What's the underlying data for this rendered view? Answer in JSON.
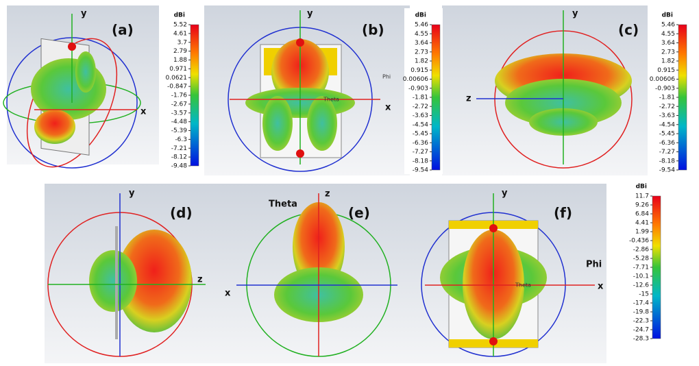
{
  "panels": [
    {
      "label": "(a)",
      "axes": [
        "y",
        "x"
      ]
    },
    {
      "label": "(b)",
      "axes": [
        "y",
        "x",
        "Phi",
        "Theta"
      ]
    },
    {
      "label": "(c)",
      "axes": [
        "y",
        "z"
      ]
    },
    {
      "label": "(d)",
      "axes": [
        "y",
        "z"
      ]
    },
    {
      "label": "(e)",
      "axes": [
        "z",
        "x",
        "Theta"
      ]
    },
    {
      "label": "(f)",
      "axes": [
        "y",
        "x",
        "Phi",
        "Theta"
      ]
    }
  ],
  "colorbars": [
    {
      "unit": "dBi",
      "ticks": [
        "5.52",
        "4.61",
        "3.7",
        "2.79",
        "1.88",
        "0.971",
        "0.0621",
        "-0.847",
        "-1.76",
        "-2.67",
        "-3.57",
        "-4.48",
        "-5.39",
        "-6.3",
        "-7.21",
        "-8.12",
        "-9.48"
      ]
    },
    {
      "unit": "dBi",
      "ticks": [
        "5.46",
        "4.55",
        "3.64",
        "2.73",
        "1.82",
        "0.915",
        "0.00606",
        "-0.903",
        "-1.81",
        "-2.72",
        "-3.63",
        "-4.54",
        "-5.45",
        "-6.36",
        "-7.27",
        "-8.18",
        "-9.54"
      ]
    },
    {
      "unit": "dBi",
      "ticks": [
        "5.46",
        "4.55",
        "3.64",
        "2.73",
        "1.82",
        "0.915",
        "0.00606",
        "-0.903",
        "-1.81",
        "-2.72",
        "-3.63",
        "-4.54",
        "-5.45",
        "-6.36",
        "-7.27",
        "-8.18",
        "-9.54"
      ]
    },
    {
      "unit": "dBi",
      "ticks": [
        "11.7",
        "9.26",
        "6.84",
        "4.41",
        "1.99",
        "-0.436",
        "-2.86",
        "-5.28",
        "-7.71",
        "-10.1",
        "-12.6",
        "-15",
        "-17.4",
        "-19.8",
        "-22.3",
        "-24.7",
        "-28.3"
      ]
    }
  ]
}
